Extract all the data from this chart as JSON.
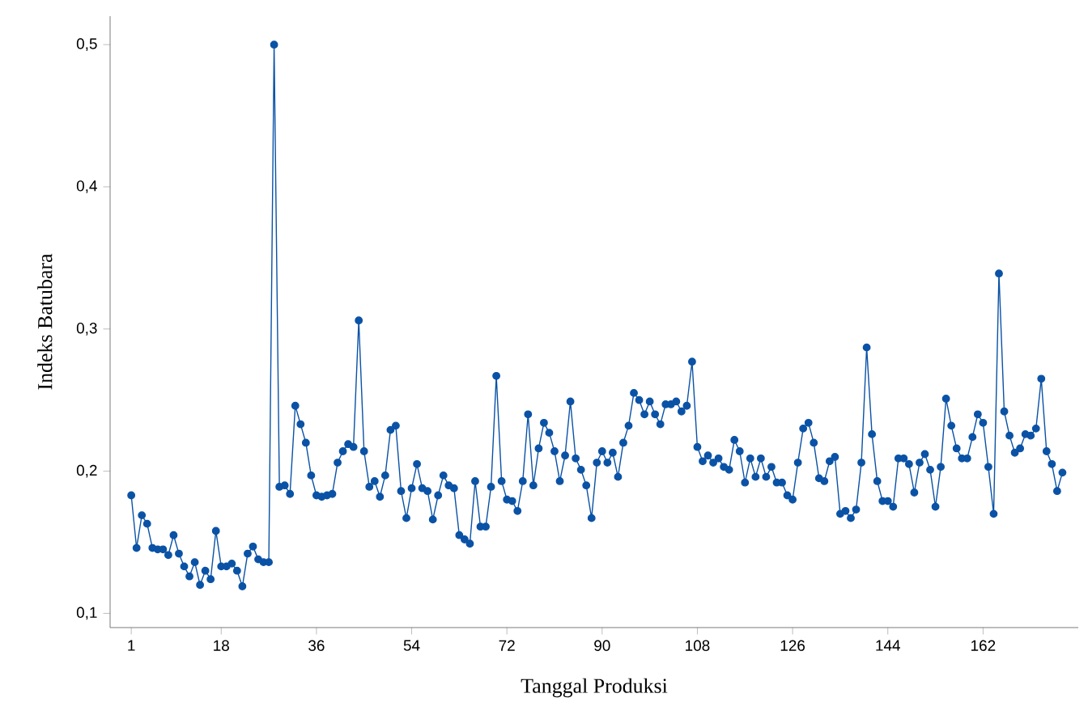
{
  "chart_data": {
    "type": "line",
    "xlabel": "Tanggal Produksi",
    "ylabel": "Indeks Batubara",
    "x": [
      1,
      2,
      3,
      4,
      5,
      6,
      7,
      8,
      9,
      10,
      11,
      12,
      13,
      14,
      15,
      16,
      17,
      18,
      19,
      20,
      21,
      22,
      23,
      24,
      25,
      26,
      27,
      28,
      29,
      30,
      31,
      32,
      33,
      34,
      35,
      36,
      37,
      38,
      39,
      40,
      41,
      42,
      43,
      44,
      45,
      46,
      47,
      48,
      49,
      50,
      51,
      52,
      53,
      54,
      55,
      56,
      57,
      58,
      59,
      60,
      61,
      62,
      63,
      64,
      65,
      66,
      67,
      68,
      69,
      70,
      71,
      72,
      73,
      74,
      75,
      76,
      77,
      78,
      79,
      80,
      81,
      82,
      83,
      84,
      85,
      86,
      87,
      88,
      89,
      90,
      91,
      92,
      93,
      94,
      95,
      96,
      97,
      98,
      99,
      100,
      101,
      102,
      103,
      104,
      105,
      106,
      107,
      108,
      109,
      110,
      111,
      112,
      113,
      114,
      115,
      116,
      117,
      118,
      119,
      120,
      121,
      122,
      123,
      124,
      125,
      126,
      127,
      128,
      129,
      130,
      131,
      132,
      133,
      134,
      135,
      136,
      137,
      138,
      139,
      140,
      141,
      142,
      143,
      144,
      145,
      146,
      147,
      148,
      149,
      150,
      151,
      152,
      153,
      154,
      155,
      156,
      157,
      158,
      159,
      160,
      161,
      162,
      163,
      164,
      165,
      166,
      167,
      168,
      169,
      170,
      171,
      172,
      173,
      174,
      175,
      176,
      177
    ],
    "series": [
      {
        "color": "#0a52a5",
        "values": [
          0.183,
          0.146,
          0.169,
          0.163,
          0.146,
          0.145,
          0.145,
          0.141,
          0.155,
          0.142,
          0.133,
          0.126,
          0.136,
          0.12,
          0.13,
          0.124,
          0.158,
          0.133,
          0.133,
          0.135,
          0.13,
          0.119,
          0.142,
          0.147,
          0.138,
          0.136,
          0.136,
          0.5,
          0.189,
          0.19,
          0.184,
          0.246,
          0.233,
          0.22,
          0.197,
          0.183,
          0.182,
          0.183,
          0.184,
          0.206,
          0.214,
          0.219,
          0.217,
          0.306,
          0.214,
          0.189,
          0.193,
          0.182,
          0.197,
          0.229,
          0.232,
          0.186,
          0.167,
          0.188,
          0.205,
          0.188,
          0.186,
          0.166,
          0.183,
          0.197,
          0.19,
          0.188,
          0.155,
          0.152,
          0.149,
          0.193,
          0.161,
          0.161,
          0.189,
          0.267,
          0.193,
          0.18,
          0.179,
          0.172,
          0.193,
          0.24,
          0.19,
          0.216,
          0.234,
          0.227,
          0.214,
          0.193,
          0.211,
          0.249,
          0.209,
          0.201,
          0.19,
          0.167,
          0.206,
          0.214,
          0.206,
          0.213,
          0.196,
          0.22,
          0.232,
          0.255,
          0.25,
          0.24,
          0.249,
          0.24,
          0.233,
          0.247,
          0.247,
          0.249,
          0.242,
          0.246,
          0.277,
          0.217,
          0.207,
          0.211,
          0.206,
          0.209,
          0.203,
          0.201,
          0.222,
          0.214,
          0.192,
          0.209,
          0.196,
          0.209,
          0.196,
          0.203,
          0.192,
          0.192,
          0.183,
          0.18,
          0.206,
          0.23,
          0.234,
          0.22,
          0.195,
          0.193,
          0.207,
          0.21,
          0.17,
          0.172,
          0.167,
          0.173,
          0.206,
          0.287,
          0.226,
          0.193,
          0.179,
          0.179,
          0.175,
          0.209,
          0.209,
          0.205,
          0.185,
          0.206,
          0.212,
          0.201,
          0.175,
          0.203,
          0.251,
          0.232,
          0.216,
          0.209,
          0.209,
          0.224,
          0.24,
          0.234,
          0.203,
          0.17,
          0.339,
          0.242,
          0.225,
          0.213,
          0.216,
          0.226,
          0.225,
          0.23,
          0.265,
          0.214,
          0.205,
          0.186,
          0.199
        ]
      }
    ],
    "xlim": [
      -3,
      180
    ],
    "ylim": [
      0.09,
      0.52
    ],
    "xticks": [
      1,
      18,
      36,
      54,
      72,
      90,
      108,
      126,
      144,
      162
    ],
    "yticks": [
      {
        "value": 0.1,
        "label": "0,1"
      },
      {
        "value": 0.2,
        "label": "0,2"
      },
      {
        "value": 0.3,
        "label": "0,3"
      },
      {
        "value": 0.4,
        "label": "0,4"
      },
      {
        "value": 0.5,
        "label": "0,5"
      }
    ],
    "marker": "circle",
    "line_style": "solid"
  }
}
